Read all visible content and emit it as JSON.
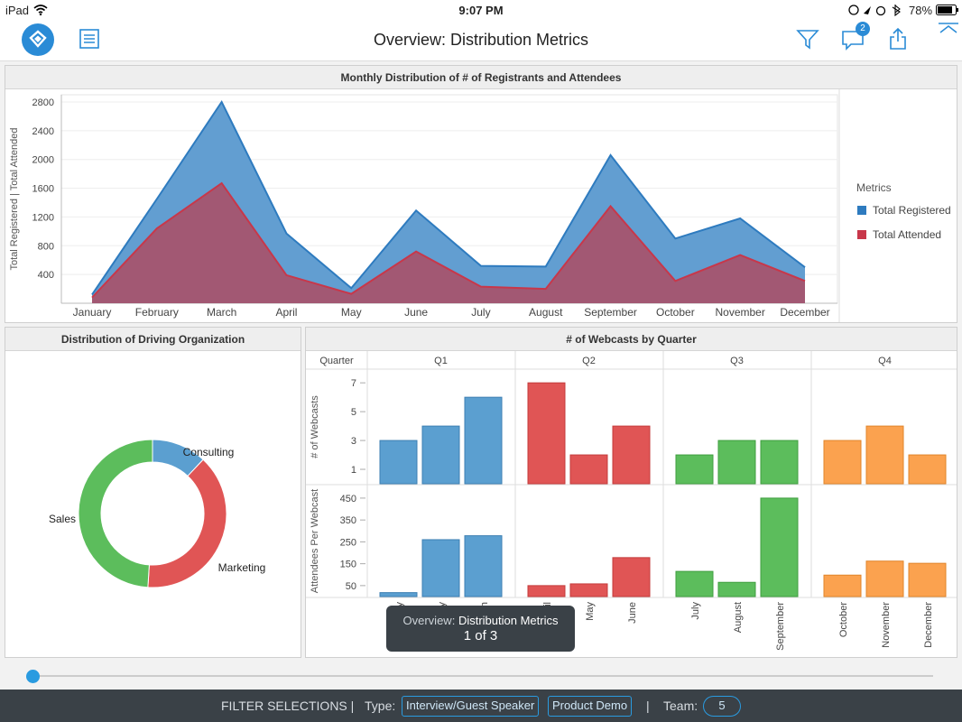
{
  "status": {
    "device": "iPad",
    "time": "9:07 PM",
    "battery": "78%"
  },
  "nav": {
    "title": "Overview: Distribution Metrics",
    "comment_count": "2"
  },
  "panels": {
    "area": {
      "title": "Monthly Distribution of # of Registrants and Attendees",
      "legend_title": "Metrics"
    },
    "donut": {
      "title": "Distribution of Driving Organization"
    },
    "bars": {
      "title": "# of Webcasts by Quarter",
      "quarter_label": "Quarter"
    }
  },
  "tooltip": {
    "label": "Overview:",
    "value": "Distribution Metrics",
    "pager": "1 of 3"
  },
  "filters": {
    "heading": "FILTER SELECTIONS |",
    "type_label": "Type:",
    "type_values": [
      "Interview/Guest Speaker",
      "Product Demo"
    ],
    "separator": "|",
    "team_label": "Team:",
    "team_value": "5"
  },
  "colors": {
    "registered": "#2e7bbf",
    "attended": "#c8374a",
    "q1": "#5b9fd0",
    "q2": "#e05555",
    "q3": "#5cbd5c",
    "q4": "#fba24f",
    "accent": "#2a8bd6"
  },
  "chart_data": [
    {
      "type": "area",
      "title": "Monthly Distribution of # of Registrants and Attendees",
      "xlabel": "",
      "ylabel": "Total Registered  |  Total Attended",
      "categories": [
        "January",
        "February",
        "March",
        "April",
        "May",
        "June",
        "July",
        "August",
        "September",
        "October",
        "November",
        "December"
      ],
      "series": [
        {
          "name": "Total Registered",
          "values": [
            120,
            1450,
            2800,
            970,
            210,
            1290,
            520,
            510,
            2060,
            900,
            1180,
            500
          ]
        },
        {
          "name": "Total Attended",
          "values": [
            80,
            1040,
            1670,
            390,
            130,
            720,
            230,
            200,
            1350,
            310,
            670,
            310
          ]
        }
      ],
      "yticks": [
        400,
        800,
        1200,
        1600,
        2000,
        2400,
        2800
      ],
      "ylim": [
        0,
        2900
      ],
      "legend_position": "right"
    },
    {
      "type": "pie",
      "title": "Distribution of Driving Organization",
      "categories": [
        "Consulting",
        "Marketing",
        "Sales"
      ],
      "values": [
        12,
        39,
        49
      ]
    },
    {
      "type": "bar",
      "title": "# of Webcasts by Quarter",
      "facets": [
        "Q1",
        "Q2",
        "Q3",
        "Q4"
      ],
      "categories": [
        [
          "January",
          "February",
          "March"
        ],
        [
          "April",
          "May",
          "June"
        ],
        [
          "July",
          "August",
          "September"
        ],
        [
          "October",
          "November",
          "December"
        ]
      ],
      "series": [
        {
          "name": "# of Webcasts",
          "yticks": [
            1,
            3,
            5,
            7
          ],
          "ylim": [
            0,
            7.7
          ],
          "values": [
            [
              3,
              4,
              6
            ],
            [
              7,
              2,
              4
            ],
            [
              2,
              3,
              3
            ],
            [
              3,
              4,
              2
            ]
          ]
        },
        {
          "name": "Attendees Per Webcast",
          "yticks": [
            50,
            150,
            250,
            350,
            450
          ],
          "ylim": [
            0,
            495
          ],
          "values": [
            [
              18,
              260,
              278
            ],
            [
              50,
              58,
              178
            ],
            [
              115,
              65,
              450
            ],
            [
              98,
              162,
              152
            ]
          ]
        }
      ]
    }
  ]
}
